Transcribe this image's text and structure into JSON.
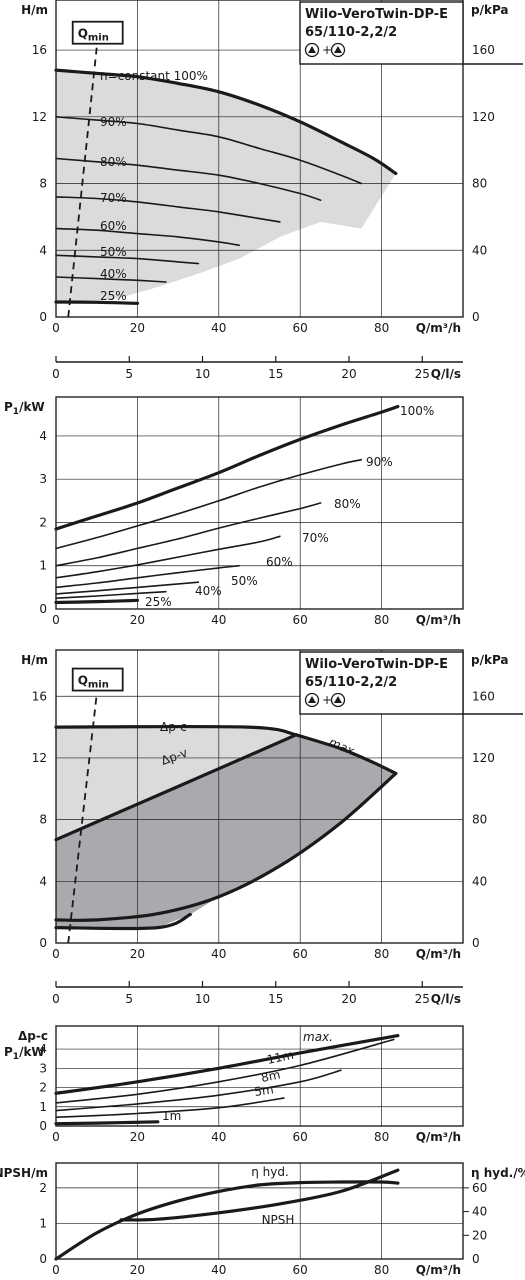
{
  "colors": {
    "ink": "#1a1a1a",
    "region_light": "#dadbdd",
    "region_dark": "#a9aaad",
    "background": "#ffffff"
  },
  "chart_data": [
    {
      "type": "line",
      "id": "hq-speed",
      "title_lines": [
        "Wilo-VeroTwin-DP-E",
        "65/110-2,2/2"
      ],
      "symbol_caption": "+",
      "xlabel": "Q/m³/h",
      "ylabel": "H/m",
      "y2label": "p/kPa",
      "xlim": [
        0,
        100
      ],
      "ylim": [
        0,
        19
      ],
      "xticks": [
        0,
        20,
        40,
        60,
        80
      ],
      "yticks": [
        0,
        4,
        8,
        12,
        16
      ],
      "y2ticks": [
        0,
        40,
        80,
        120,
        160
      ],
      "grid": true,
      "qmin": {
        "label": "Q",
        "subscript": "min",
        "x": [
          3,
          10
        ],
        "y": [
          0,
          16.5
        ]
      },
      "region": {
        "x": [
          0,
          10,
          20,
          30,
          40,
          50,
          60,
          70,
          78,
          83.5,
          75,
          65,
          55,
          45,
          35,
          25,
          15,
          8,
          0
        ],
        "y": [
          14.7,
          14.6,
          14.4,
          14.0,
          13.5,
          12.7,
          11.7,
          10.5,
          9.5,
          8.6,
          5.3,
          5.7,
          4.8,
          3.5,
          2.6,
          1.8,
          1.1,
          0.9,
          0.9
        ]
      },
      "series": [
        {
          "name": "n=constant 100%",
          "bold": true,
          "x": [
            0,
            10,
            20,
            30,
            40,
            50,
            60,
            70,
            78,
            83.5
          ],
          "y": [
            14.8,
            14.6,
            14.4,
            14.0,
            13.5,
            12.7,
            11.7,
            10.5,
            9.5,
            8.6
          ]
        },
        {
          "name": "90%",
          "x": [
            0,
            10,
            20,
            30,
            40,
            50,
            60,
            70,
            75
          ],
          "y": [
            12.0,
            11.8,
            11.6,
            11.2,
            10.8,
            10.1,
            9.4,
            8.5,
            8.0
          ]
        },
        {
          "name": "80%",
          "x": [
            0,
            10,
            20,
            30,
            40,
            50,
            60,
            65
          ],
          "y": [
            9.5,
            9.3,
            9.1,
            8.8,
            8.5,
            8.0,
            7.4,
            7.0
          ]
        },
        {
          "name": "70%",
          "x": [
            0,
            10,
            20,
            30,
            40,
            50,
            55
          ],
          "y": [
            7.2,
            7.1,
            6.9,
            6.6,
            6.3,
            5.9,
            5.7
          ]
        },
        {
          "name": "60%",
          "x": [
            0,
            10,
            20,
            30,
            40,
            45
          ],
          "y": [
            5.3,
            5.2,
            5.0,
            4.8,
            4.5,
            4.3
          ]
        },
        {
          "name": "50%",
          "x": [
            0,
            10,
            20,
            30,
            35
          ],
          "y": [
            3.7,
            3.6,
            3.5,
            3.3,
            3.2
          ]
        },
        {
          "name": "40%",
          "x": [
            0,
            10,
            20,
            27
          ],
          "y": [
            2.4,
            2.3,
            2.2,
            2.1
          ]
        },
        {
          "name": "25%",
          "bold": true,
          "x": [
            0,
            10,
            20
          ],
          "y": [
            0.9,
            0.88,
            0.82
          ]
        }
      ]
    },
    {
      "type": "axis",
      "id": "q-ls-1",
      "xlabel": "Q/l/s",
      "xlim": [
        0,
        27.78
      ],
      "xticks": [
        0,
        5,
        10,
        15,
        20,
        25
      ]
    },
    {
      "type": "line",
      "id": "p1-speed",
      "xlabel": "Q/m³/h",
      "ylabel": "P",
      "ylabel_sub": "1",
      "ylabel_unit": "/kW",
      "xlim": [
        0,
        100
      ],
      "ylim": [
        0,
        4.9
      ],
      "xticks": [
        0,
        20,
        40,
        60,
        80
      ],
      "yticks": [
        0,
        1,
        2,
        3,
        4
      ],
      "grid": true,
      "series": [
        {
          "name": "100%",
          "bold": true,
          "x": [
            0,
            10,
            20,
            30,
            40,
            50,
            60,
            70,
            80,
            84
          ],
          "y": [
            1.85,
            2.15,
            2.45,
            2.8,
            3.15,
            3.55,
            3.92,
            4.25,
            4.55,
            4.68
          ]
        },
        {
          "name": "90%",
          "x": [
            0,
            10,
            20,
            30,
            40,
            50,
            60,
            70,
            75
          ],
          "y": [
            1.4,
            1.65,
            1.92,
            2.2,
            2.5,
            2.82,
            3.1,
            3.35,
            3.45
          ]
        },
        {
          "name": "80%",
          "x": [
            0,
            10,
            20,
            30,
            40,
            50,
            60,
            65
          ],
          "y": [
            1.0,
            1.18,
            1.4,
            1.62,
            1.87,
            2.1,
            2.32,
            2.45
          ]
        },
        {
          "name": "70%",
          "x": [
            0,
            10,
            20,
            30,
            40,
            50,
            55
          ],
          "y": [
            0.72,
            0.86,
            1.02,
            1.2,
            1.38,
            1.55,
            1.68
          ]
        },
        {
          "name": "60%",
          "x": [
            0,
            10,
            20,
            30,
            40,
            45
          ],
          "y": [
            0.5,
            0.6,
            0.72,
            0.84,
            0.95,
            1.0
          ]
        },
        {
          "name": "50%",
          "x": [
            0,
            10,
            20,
            30,
            35
          ],
          "y": [
            0.35,
            0.42,
            0.5,
            0.58,
            0.62
          ]
        },
        {
          "name": "40%",
          "x": [
            0,
            10,
            20,
            27
          ],
          "y": [
            0.25,
            0.3,
            0.36,
            0.4
          ]
        },
        {
          "name": "25%",
          "bold": true,
          "x": [
            0,
            10,
            20
          ],
          "y": [
            0.15,
            0.17,
            0.2
          ]
        }
      ]
    },
    {
      "type": "area",
      "id": "hq-control",
      "title_lines": [
        "Wilo-VeroTwin-DP-E",
        "65/110-2,2/2"
      ],
      "symbol_caption": "+",
      "xlabel": "Q/m³/h",
      "ylabel": "H/m",
      "y2label": "p/kPa",
      "xlim": [
        0,
        100
      ],
      "ylim": [
        0,
        19
      ],
      "xticks": [
        0,
        20,
        40,
        60,
        80
      ],
      "yticks": [
        0,
        4,
        8,
        12,
        16
      ],
      "y2ticks": [
        0,
        40,
        80,
        120,
        160
      ],
      "grid": true,
      "qmin": {
        "label": "Q",
        "subscript": "min",
        "x": [
          3,
          10
        ],
        "y": [
          0,
          16.5
        ]
      },
      "series": [
        {
          "name": "Δp-c",
          "bold": true,
          "x": [
            0,
            47,
            59
          ],
          "y": [
            14.0,
            14.0,
            13.5
          ]
        },
        {
          "name": "Δp-v",
          "bold": true,
          "x": [
            0,
            20,
            40,
            59
          ],
          "y": [
            6.7,
            9.0,
            11.3,
            13.5
          ]
        },
        {
          "name": "max.",
          "bold": true,
          "x": [
            59,
            70,
            78,
            83.5
          ],
          "y": [
            13.5,
            12.6,
            11.7,
            11.0
          ]
        },
        {
          "name": "",
          "bold": true,
          "x": [
            83.5,
            70,
            55,
            40,
            25,
            10,
            0
          ],
          "y": [
            11.0,
            7.8,
            5.0,
            3.0,
            1.9,
            1.5,
            1.5
          ]
        },
        {
          "name": "",
          "bold": true,
          "x": [
            0,
            25,
            33
          ],
          "y": [
            1.0,
            1.0,
            1.85
          ]
        }
      ],
      "regions": [
        {
          "shade": "light",
          "x": [
            0,
            47,
            59,
            40,
            20,
            0
          ],
          "y": [
            14.0,
            14.0,
            13.5,
            11.3,
            9.0,
            6.7
          ]
        },
        {
          "shade": "dark",
          "x": [
            0,
            20,
            40,
            59,
            70,
            78,
            83.5,
            70,
            55,
            40,
            33,
            25,
            0
          ],
          "y": [
            6.7,
            9.0,
            11.3,
            13.5,
            12.6,
            11.7,
            11.0,
            7.8,
            5.0,
            3.0,
            1.85,
            1.0,
            1.0
          ]
        }
      ]
    },
    {
      "type": "axis",
      "id": "q-ls-2",
      "xlabel": "Q/l/s",
      "xlim": [
        0,
        27.78
      ],
      "xticks": [
        0,
        5,
        10,
        15,
        20,
        25
      ]
    },
    {
      "type": "line",
      "id": "p1-control",
      "xlabel": "Q/m³/h",
      "ylabel_top": "Δp-c",
      "ylabel": "P",
      "ylabel_sub": "1",
      "ylabel_unit": "/kW",
      "xlim": [
        0,
        100
      ],
      "ylim": [
        0,
        5.2
      ],
      "xticks": [
        0,
        20,
        40,
        60,
        80
      ],
      "yticks": [
        0,
        1,
        2,
        3,
        4
      ],
      "grid": true,
      "series": [
        {
          "name": "max.",
          "bold": true,
          "x": [
            0,
            20,
            40,
            60,
            84
          ],
          "y": [
            1.7,
            2.3,
            3.0,
            3.8,
            4.7
          ]
        },
        {
          "name": "11m",
          "x": [
            0,
            20,
            40,
            60,
            83
          ],
          "y": [
            1.2,
            1.65,
            2.3,
            3.15,
            4.5
          ]
        },
        {
          "name": "8m",
          "x": [
            0,
            20,
            40,
            60,
            70
          ],
          "y": [
            0.8,
            1.15,
            1.6,
            2.3,
            2.9
          ]
        },
        {
          "name": "5m",
          "x": [
            0,
            20,
            40,
            56
          ],
          "y": [
            0.45,
            0.65,
            0.95,
            1.45
          ]
        },
        {
          "name": "1m",
          "bold": true,
          "x": [
            0,
            10,
            25
          ],
          "y": [
            0.12,
            0.15,
            0.22
          ]
        }
      ]
    },
    {
      "type": "line",
      "id": "npsh-eta",
      "xlabel": "Q/m³/h",
      "ylabel": "NPSH/m",
      "y2label": "η hyd./%",
      "xlim": [
        0,
        100
      ],
      "ylim": [
        0,
        2.7
      ],
      "y2lim": [
        0,
        81
      ],
      "xticks": [
        0,
        20,
        40,
        60,
        80
      ],
      "yticks": [
        0,
        1,
        2
      ],
      "y2ticks": [
        0,
        20,
        40,
        60
      ],
      "grid": true,
      "series": [
        {
          "name": "η hyd.",
          "axis": "right",
          "bold": true,
          "x": [
            0,
            10,
            20,
            30,
            40,
            50,
            60,
            70,
            80,
            84
          ],
          "y": [
            0,
            22,
            38,
            49,
            57,
            62.5,
            64.5,
            65,
            65,
            64
          ]
        },
        {
          "name": "NPSH",
          "axis": "left",
          "bold": true,
          "x": [
            16,
            25,
            40,
            55,
            70,
            84
          ],
          "y": [
            1.1,
            1.12,
            1.3,
            1.55,
            1.9,
            2.5
          ]
        }
      ]
    }
  ]
}
